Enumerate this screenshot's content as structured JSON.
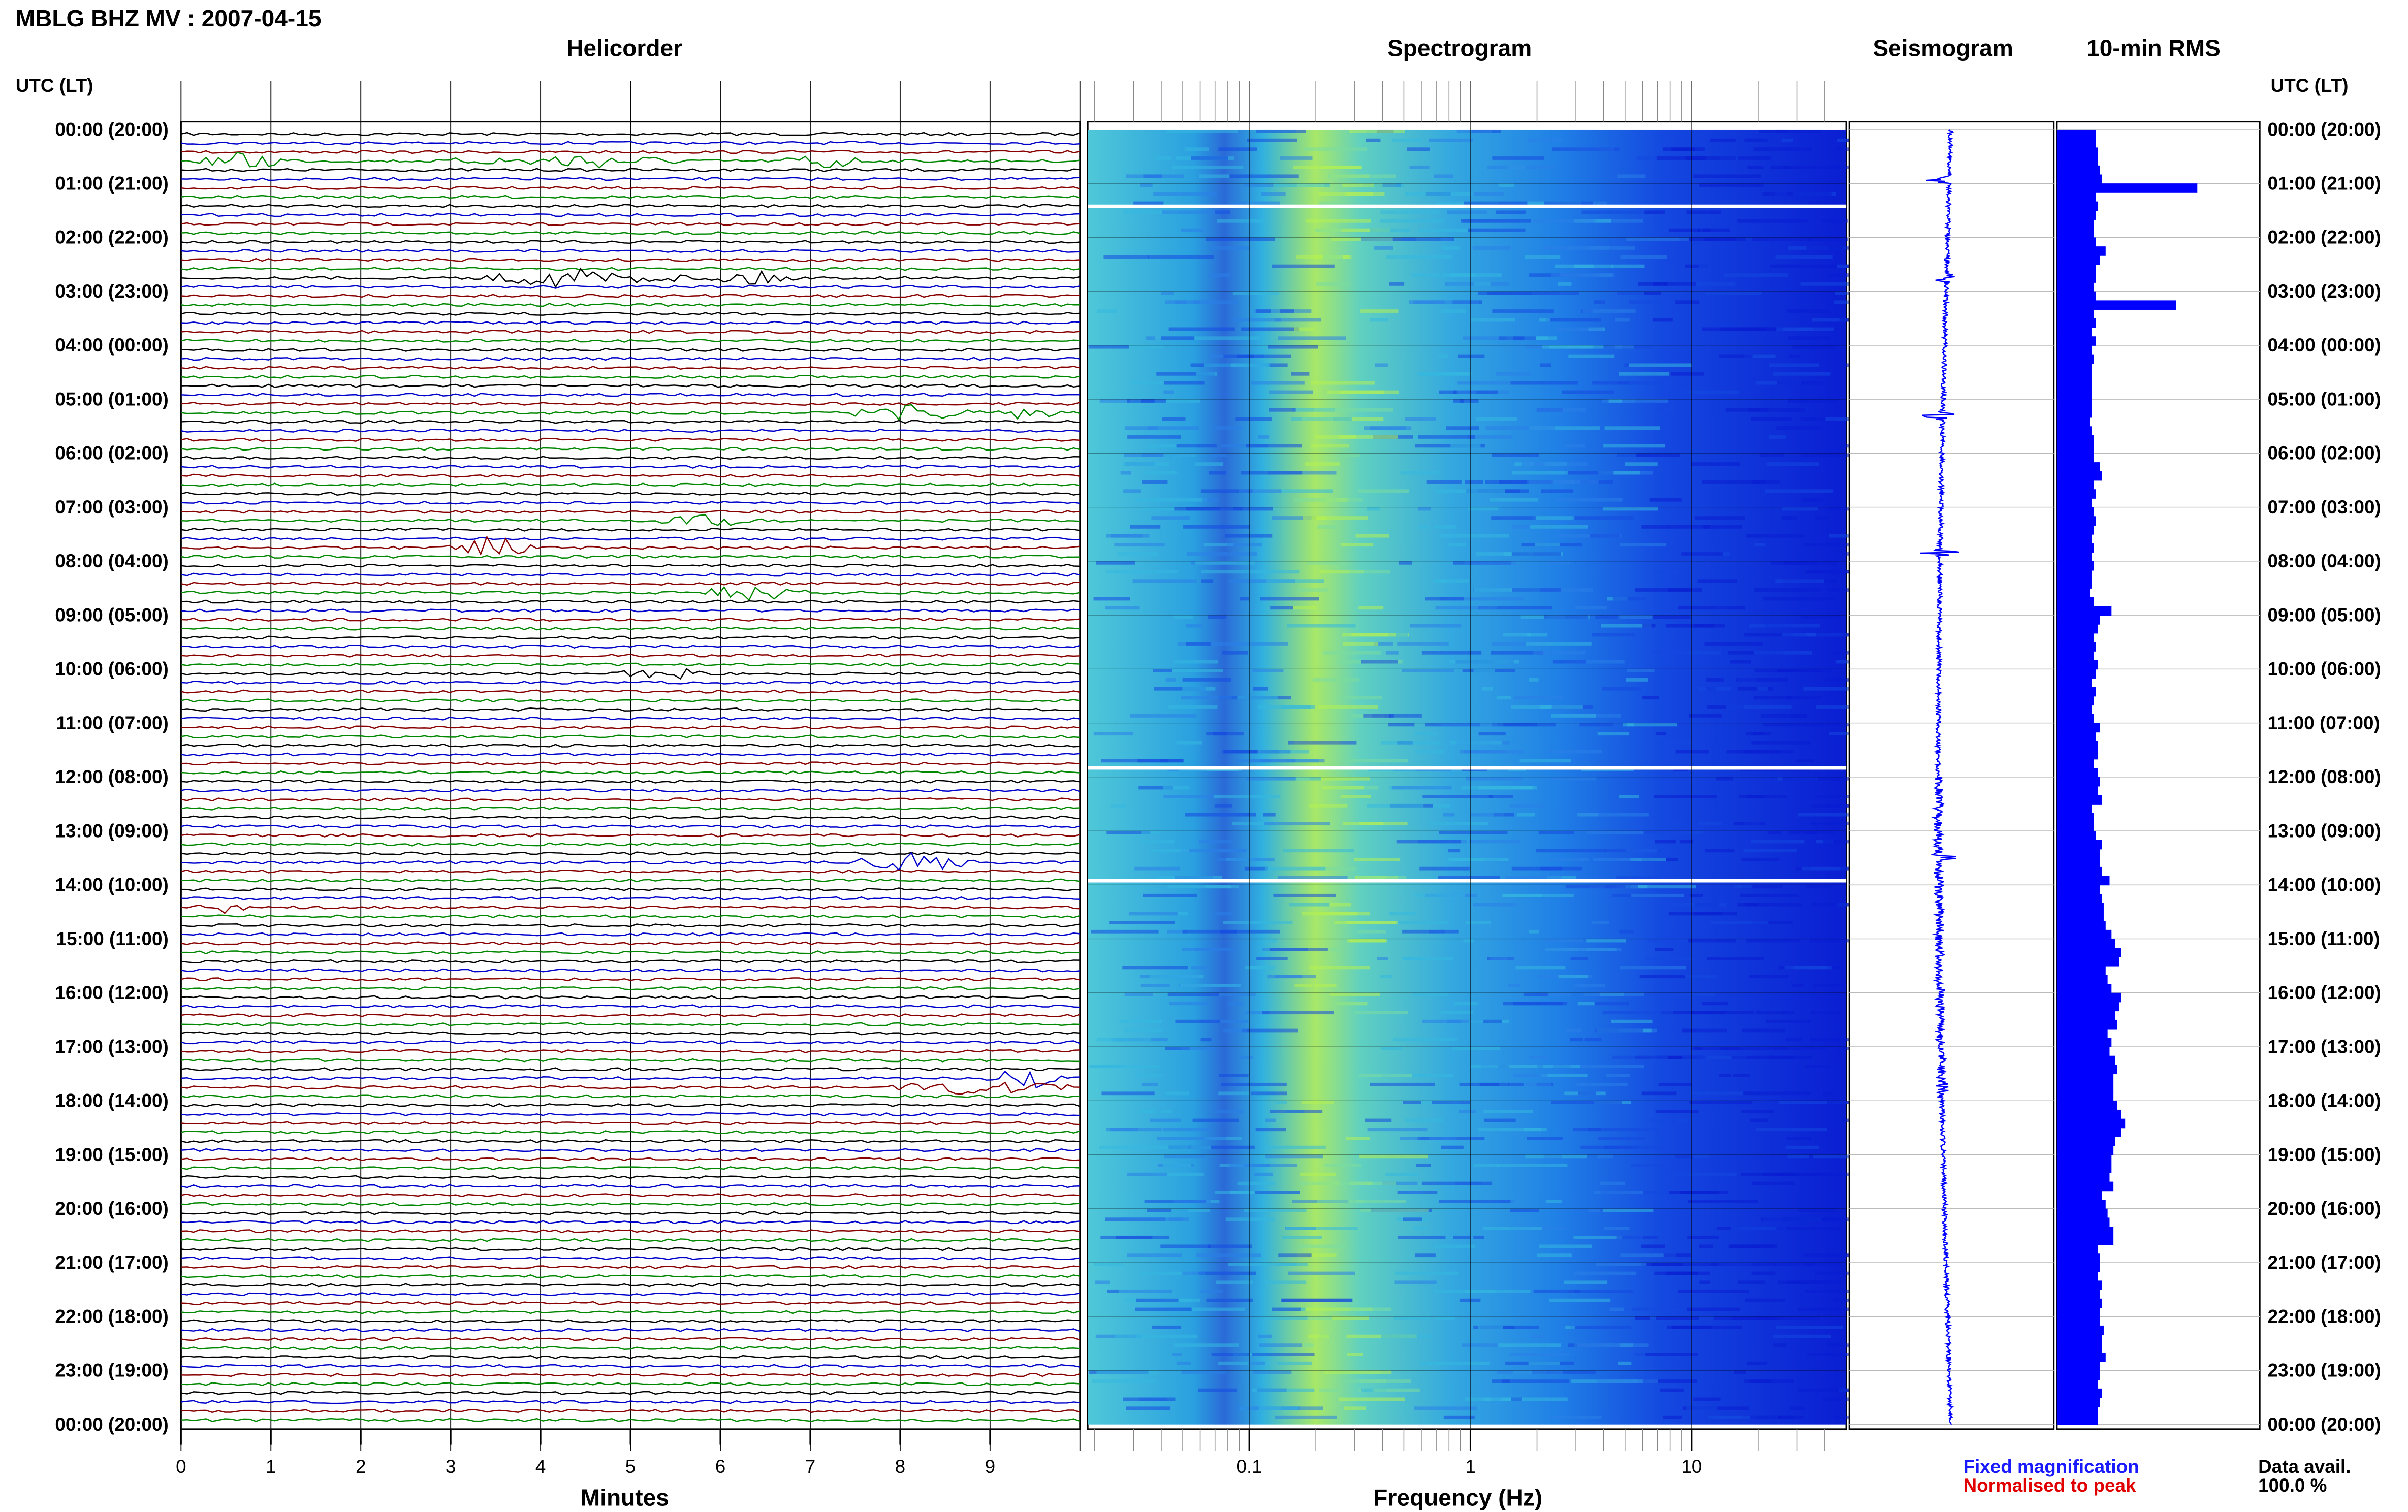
{
  "header": {
    "station_title": "MBLG BHZ MV : 2007-04-15",
    "helicorder_title": "Helicorder",
    "spectrogram_title": "Spectrogram",
    "seismogram_title": "Seismogram",
    "rms_title": "10-min RMS",
    "utc_label_left": "UTC (LT)",
    "utc_label_right": "UTC (LT)"
  },
  "axes": {
    "minutes_label": "Minutes",
    "frequency_label": "Frequency (Hz)",
    "minute_ticks": [
      "0",
      "1",
      "2",
      "3",
      "4",
      "5",
      "6",
      "7",
      "8",
      "9"
    ],
    "frequency_ticks": [
      "0.1",
      "1",
      "10"
    ],
    "frequency_range_hz": [
      0.0186,
      50
    ],
    "frequency_scale": "log",
    "time_range_utc_hours": [
      0,
      24
    ]
  },
  "time_labels": [
    "00:00 (20:00)",
    "01:00 (21:00)",
    "02:00 (22:00)",
    "03:00 (23:00)",
    "04:00 (00:00)",
    "05:00 (01:00)",
    "06:00 (02:00)",
    "07:00 (03:00)",
    "08:00 (04:00)",
    "09:00 (05:00)",
    "10:00 (06:00)",
    "11:00 (07:00)",
    "12:00 (08:00)",
    "13:00 (09:00)",
    "14:00 (10:00)",
    "15:00 (11:00)",
    "16:00 (12:00)",
    "17:00 (13:00)",
    "18:00 (14:00)",
    "19:00 (15:00)",
    "20:00 (16:00)",
    "21:00 (17:00)",
    "22:00 (18:00)",
    "23:00 (19:00)",
    "00:00 (20:00)"
  ],
  "legend": {
    "fixed_magnification": "Fixed magnification",
    "normalised_to_peak": "Normalised to peak",
    "data_avail_label": "Data avail.",
    "data_avail_value": "100.0 %"
  },
  "colors": {
    "trace_cycle": [
      "#000000",
      "#0000cc",
      "#880000",
      "#008800"
    ],
    "rms_bar": "#0000ff",
    "seismogram": "#0000ff",
    "spectrogram_low": "#0a1ed2",
    "spectrogram_mid": "#28b4dc",
    "spectrogram_high": "#b4f050",
    "legend_fixed": "#1a1aff",
    "legend_normalised": "#e00000"
  },
  "chart_data": [
    {
      "type": "line",
      "title": "Helicorder",
      "xlabel": "Minutes",
      "xlim": [
        0,
        10
      ],
      "rows": 144,
      "row_minutes": 10,
      "events": [
        {
          "hour": 0.5,
          "minute_start": 0.2,
          "minute_end": 1.3,
          "amp": 0.9,
          "color": "#880000"
        },
        {
          "hour": 0.5,
          "minute_start": 3.0,
          "minute_end": 5.8,
          "amp": 0.7,
          "color": "#880000"
        },
        {
          "hour": 0.5,
          "minute_start": 6.7,
          "minute_end": 7.6,
          "amp": 1.0,
          "color": "#880000"
        },
        {
          "hour": 2.67,
          "minute_start": 3.2,
          "minute_end": 5.6,
          "amp": 0.9,
          "color": "#000000"
        },
        {
          "hour": 2.67,
          "minute_start": 5.6,
          "minute_end": 7.0,
          "amp": 0.6,
          "color": "#000000"
        },
        {
          "hour": 5.17,
          "minute_start": 7.5,
          "minute_end": 8.8,
          "amp": 0.9,
          "color": "#008800"
        },
        {
          "hour": 5.17,
          "minute_start": 8.8,
          "minute_end": 9.9,
          "amp": 0.5,
          "color": "#0000cc"
        },
        {
          "hour": 7.17,
          "minute_start": 5.3,
          "minute_end": 6.5,
          "amp": 0.5,
          "color": "#008800"
        },
        {
          "hour": 7.67,
          "minute_start": 2.9,
          "minute_end": 4.0,
          "amp": 1.0,
          "color": "#0000cc"
        },
        {
          "hour": 8.5,
          "minute_start": 5.7,
          "minute_end": 7.0,
          "amp": 0.7,
          "color": "#0000cc"
        },
        {
          "hour": 10.0,
          "minute_start": 4.8,
          "minute_end": 6.0,
          "amp": 0.5,
          "color": "#000000"
        },
        {
          "hour": 13.5,
          "minute_start": 7.3,
          "minute_end": 9.0,
          "amp": 0.8,
          "color": "#880000"
        },
        {
          "hour": 14.33,
          "minute_start": 0.2,
          "minute_end": 0.7,
          "amp": 0.6,
          "color": "#000000"
        },
        {
          "hour": 17.5,
          "minute_start": 8.9,
          "minute_end": 9.9,
          "amp": 1.0,
          "color": "#880000"
        },
        {
          "hour": 17.67,
          "minute_start": 7.8,
          "minute_end": 9.9,
          "amp": 0.6,
          "color": "#0000cc"
        }
      ]
    },
    {
      "type": "heatmap",
      "title": "Spectrogram",
      "xlabel": "Frequency (Hz)",
      "x_scale": "log",
      "xlim": [
        0.0186,
        50
      ],
      "ylim_hours": [
        0,
        24
      ],
      "gap_hours": [
        1.42,
        11.83,
        13.92
      ],
      "peak_band_hz": [
        0.2,
        0.6
      ]
    },
    {
      "type": "line",
      "title": "Seismogram",
      "ylim_hours": [
        0,
        24
      ],
      "spikes_hours": [
        0.95,
        2.75,
        5.3,
        7.85,
        13.5,
        17.75
      ]
    },
    {
      "type": "bar",
      "title": "10-min RMS",
      "ylim_hours": [
        0,
        24
      ],
      "bin_minutes": 10,
      "values": [
        20,
        20,
        21,
        21,
        22,
        23,
        72,
        20,
        21,
        20,
        19,
        19,
        20,
        25,
        22,
        20,
        20,
        19,
        20,
        61,
        19,
        20,
        18,
        20,
        18,
        19,
        18,
        18,
        18,
        18,
        18,
        18,
        17,
        18,
        19,
        19,
        19,
        22,
        23,
        19,
        20,
        18,
        19,
        20,
        19,
        18,
        19,
        18,
        19,
        18,
        18,
        17,
        19,
        28,
        22,
        21,
        19,
        20,
        19,
        21,
        20,
        18,
        20,
        19,
        18,
        19,
        22,
        20,
        21,
        21,
        19,
        21,
        22,
        21,
        23,
        18,
        19,
        19,
        20,
        23,
        22,
        22,
        23,
        27,
        22,
        23,
        24,
        24,
        25,
        28,
        30,
        33,
        32,
        25,
        26,
        28,
        33,
        32,
        30,
        31,
        26,
        28,
        27,
        30,
        31,
        29,
        29,
        29,
        31,
        33,
        35,
        33,
        30,
        29,
        28,
        28,
        27,
        29,
        23,
        25,
        26,
        27,
        29,
        29,
        21,
        22,
        22,
        21,
        23,
        22,
        23,
        22,
        22,
        24,
        23,
        23,
        25,
        22,
        22,
        21,
        23,
        22,
        21,
        21
      ]
    }
  ]
}
